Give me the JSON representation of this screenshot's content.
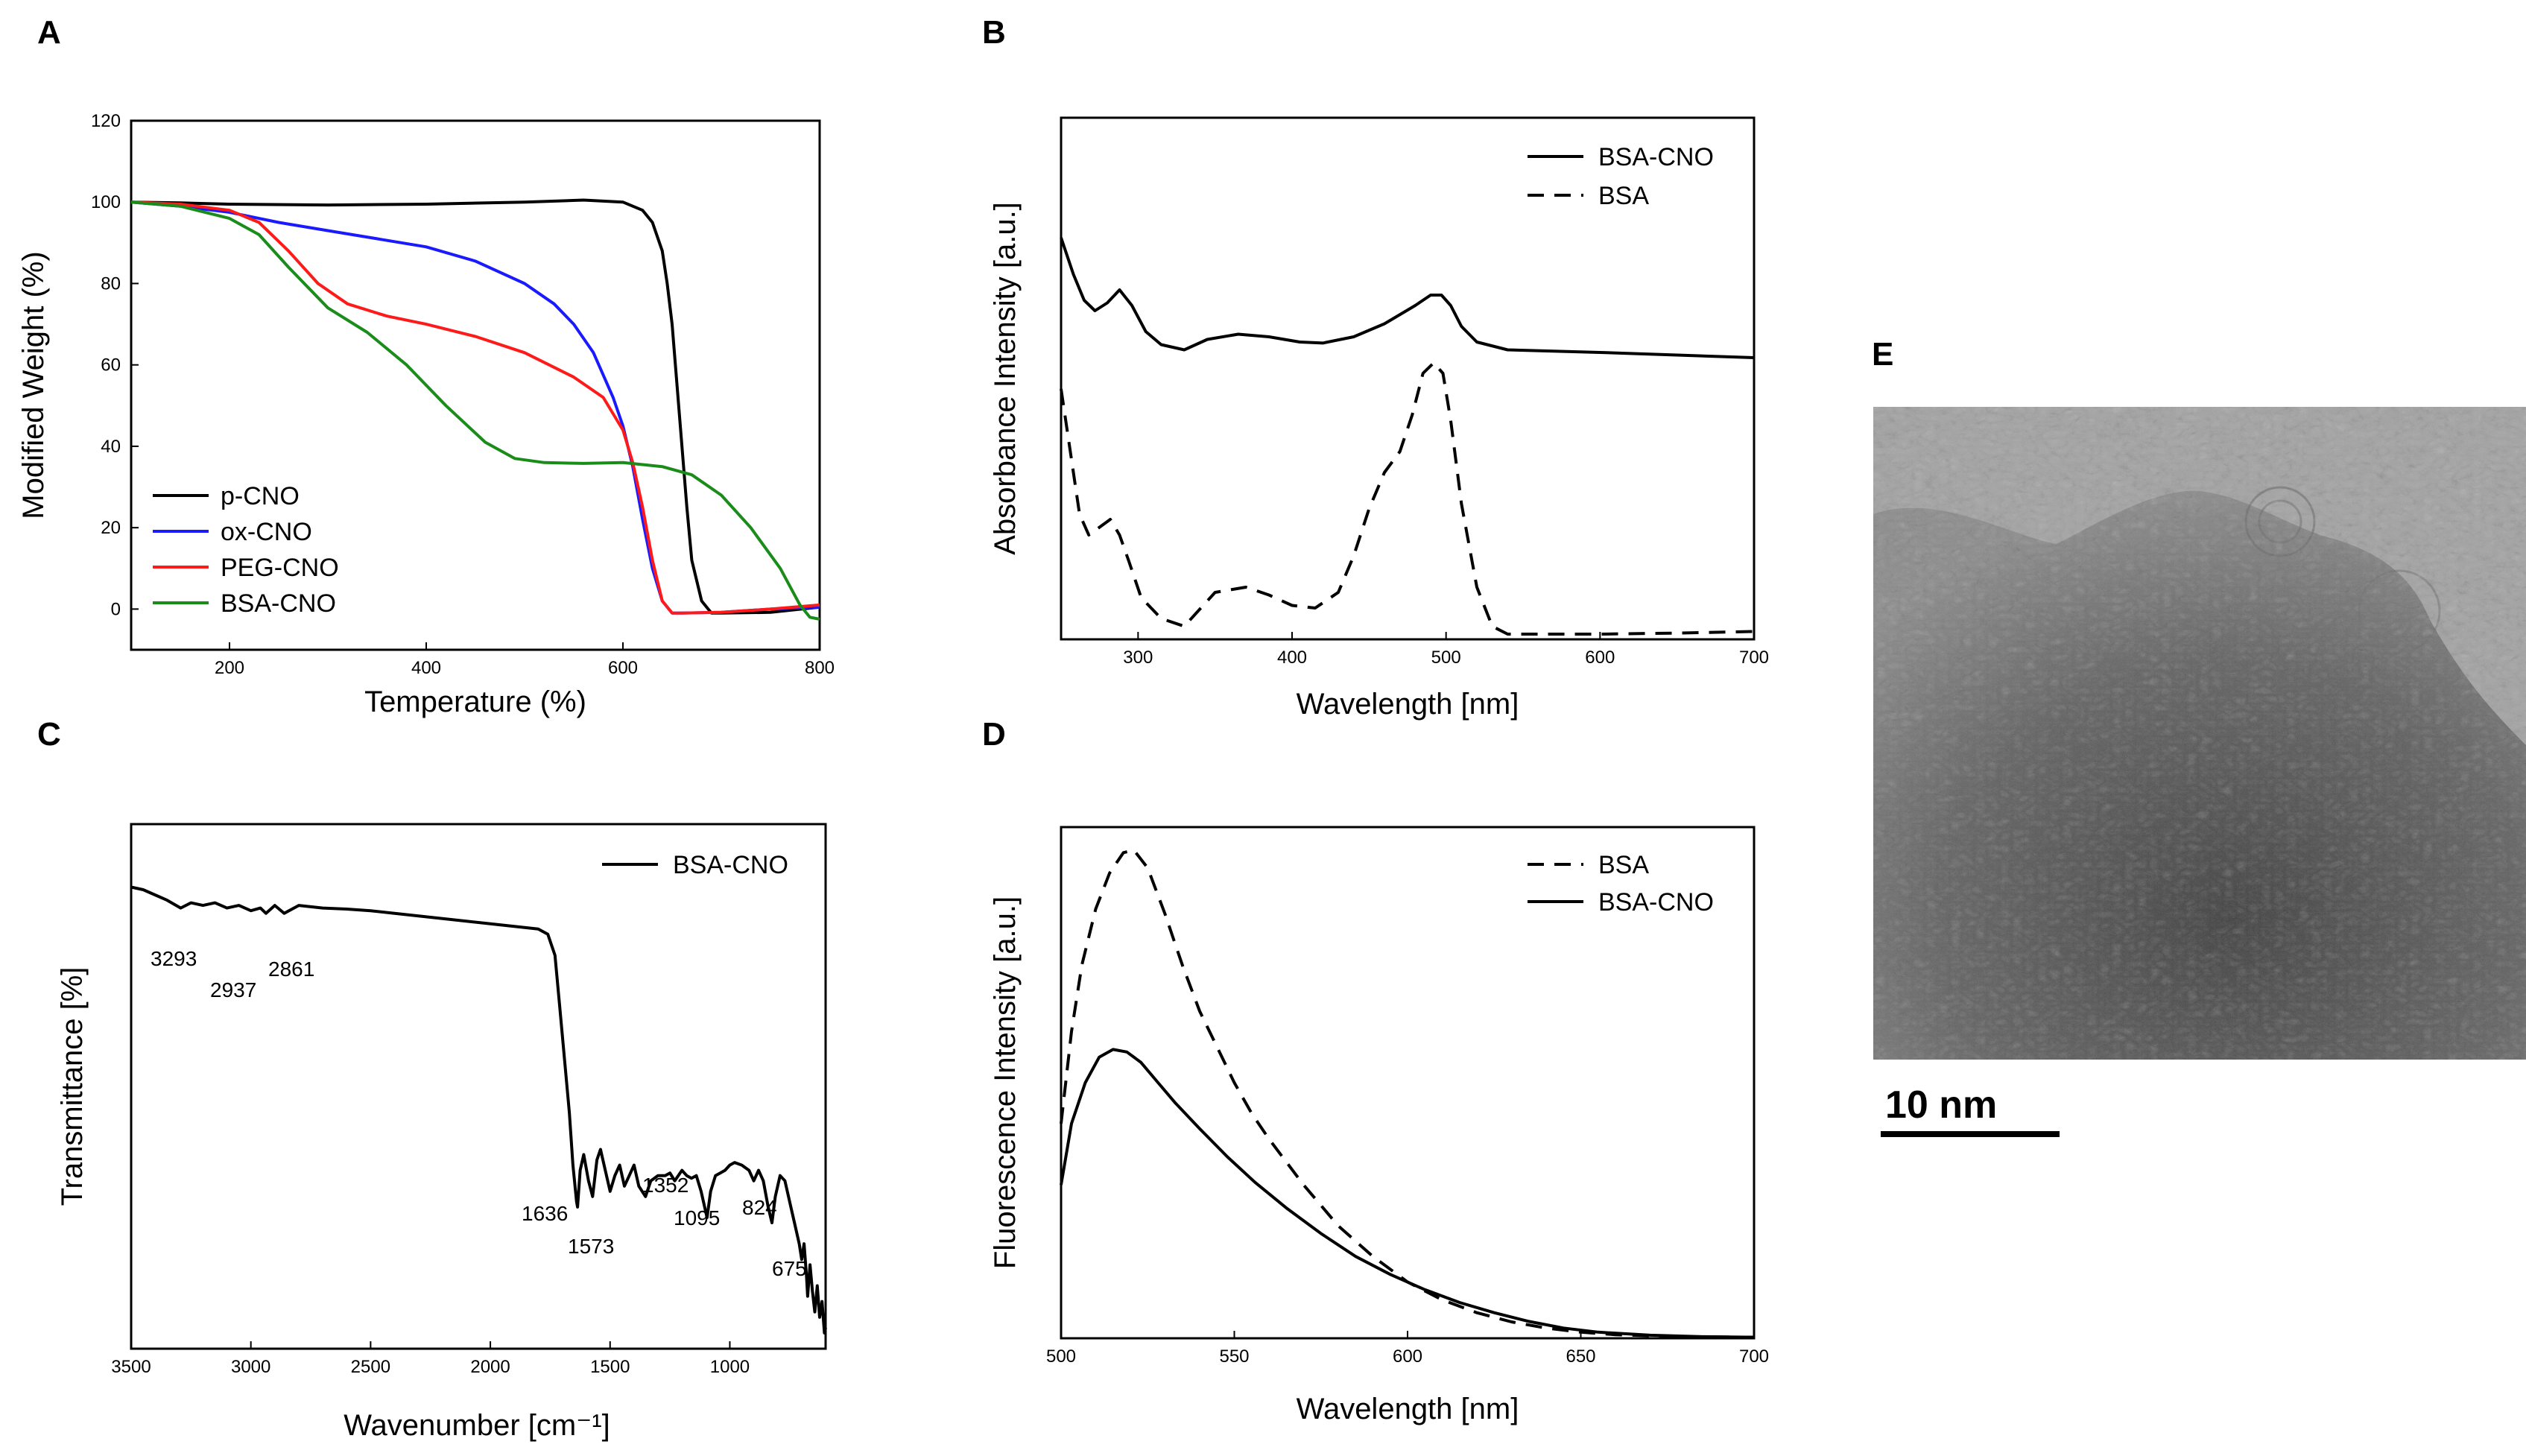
{
  "chart_data": [
    {
      "panel": "A",
      "type": "line",
      "xlabel": "Temperature (%)",
      "ylabel": "Modified Weight (%)",
      "xlim": [
        100,
        800
      ],
      "ylim": [
        -10,
        120
      ],
      "xticks": [
        200,
        400,
        600,
        800
      ],
      "yticks": [
        0,
        20,
        40,
        60,
        80,
        100,
        120
      ],
      "legend_position": "bottom-left",
      "series": [
        {
          "name": "p-CNO",
          "color": "#000000",
          "dash": "solid",
          "x": [
            100,
            150,
            200,
            300,
            400,
            500,
            560,
            600,
            620,
            630,
            640,
            645,
            650,
            655,
            660,
            665,
            670,
            680,
            690,
            700,
            750,
            800
          ],
          "y": [
            100,
            99.8,
            99.5,
            99.3,
            99.5,
            100,
            100.5,
            100,
            98,
            95,
            88,
            80,
            70,
            55,
            40,
            25,
            12,
            2,
            -1,
            -1,
            -0.8,
            0.5
          ]
        },
        {
          "name": "ox-CNO",
          "color": "#1a1aff",
          "dash": "solid",
          "x": [
            100,
            150,
            200,
            250,
            300,
            350,
            400,
            450,
            500,
            530,
            550,
            570,
            590,
            600,
            610,
            620,
            630,
            640,
            650,
            660,
            700,
            750,
            800
          ],
          "y": [
            100,
            99,
            97.5,
            95,
            93,
            91,
            89,
            85.5,
            80,
            75,
            70,
            63,
            52,
            45,
            35,
            22,
            10,
            2,
            -1,
            -1,
            -0.8,
            0,
            0.5
          ]
        },
        {
          "name": "PEG-CNO",
          "color": "#ff1a1a",
          "dash": "solid",
          "x": [
            100,
            150,
            200,
            230,
            260,
            290,
            320,
            360,
            400,
            450,
            500,
            550,
            580,
            600,
            610,
            620,
            630,
            640,
            650,
            660,
            700,
            750,
            800
          ],
          "y": [
            100,
            99.5,
            98,
            95,
            88,
            80,
            75,
            72,
            70,
            67,
            63,
            57,
            52,
            44,
            36,
            25,
            12,
            2,
            -1,
            -1,
            -0.8,
            0,
            1
          ]
        },
        {
          "name": "BSA-CNO",
          "color": "#1a8c1a",
          "dash": "solid",
          "x": [
            100,
            150,
            200,
            230,
            260,
            300,
            340,
            380,
            420,
            460,
            490,
            520,
            560,
            600,
            640,
            670,
            700,
            730,
            760,
            780,
            790,
            800
          ],
          "y": [
            100,
            99,
            96,
            92,
            84,
            74,
            68,
            60,
            50,
            41,
            37,
            36,
            35.8,
            36,
            35,
            33,
            28,
            20,
            10,
            1,
            -2,
            -2.5
          ]
        }
      ]
    },
    {
      "panel": "B",
      "type": "line",
      "xlabel": "Wavelength [nm]",
      "ylabel": "Absorbance Intensity [a.u.]",
      "xlim": [
        250,
        700
      ],
      "ylim": [
        0,
        10
      ],
      "xticks": [
        300,
        400,
        500,
        600,
        700
      ],
      "yticks": [],
      "legend_position": "top-right",
      "series": [
        {
          "name": "BSA-CNO",
          "color": "#000000",
          "dash": "solid",
          "x": [
            250,
            258,
            265,
            272,
            280,
            288,
            296,
            305,
            315,
            330,
            345,
            365,
            385,
            405,
            420,
            440,
            460,
            480,
            490,
            497,
            503,
            510,
            520,
            540,
            600,
            650,
            700
          ],
          "y": [
            7.7,
            7.0,
            6.5,
            6.3,
            6.45,
            6.7,
            6.4,
            5.9,
            5.65,
            5.55,
            5.75,
            5.85,
            5.8,
            5.7,
            5.68,
            5.8,
            6.05,
            6.4,
            6.6,
            6.6,
            6.4,
            6.0,
            5.7,
            5.55,
            5.5,
            5.45,
            5.4
          ]
        },
        {
          "name": "BSA",
          "color": "#000000",
          "dash": "dashed",
          "x": [
            250,
            256,
            262,
            268,
            275,
            282,
            288,
            294,
            302,
            315,
            330,
            350,
            370,
            385,
            400,
            415,
            430,
            440,
            450,
            460,
            470,
            478,
            485,
            492,
            498,
            503,
            510,
            520,
            530,
            540,
            600,
            650,
            700
          ],
          "y": [
            4.8,
            3.6,
            2.4,
            2.0,
            2.15,
            2.3,
            2.0,
            1.5,
            0.8,
            0.4,
            0.25,
            0.9,
            1.0,
            0.85,
            0.65,
            0.6,
            0.9,
            1.6,
            2.5,
            3.2,
            3.6,
            4.3,
            5.1,
            5.3,
            5.1,
            4.2,
            2.6,
            1.0,
            0.25,
            0.1,
            0.1,
            0.12,
            0.15
          ]
        }
      ]
    },
    {
      "panel": "C",
      "type": "line",
      "xlabel": "Wavenumber [cm⁻¹]",
      "ylabel": "Transmittance [%]",
      "xlim": [
        3500,
        600
      ],
      "ylim": [
        0,
        10
      ],
      "xticks": [
        3500,
        3000,
        2500,
        2000,
        1500,
        1000
      ],
      "yticks": [],
      "legend_position": "top-right",
      "annotations": [
        "3293",
        "2937",
        "2861",
        "1636",
        "1573",
        "1352",
        "1095",
        "824",
        "675"
      ],
      "series": [
        {
          "name": "BSA-CNO",
          "color": "#000000",
          "dash": "solid",
          "x": [
            3500,
            3450,
            3400,
            3350,
            3293,
            3250,
            3200,
            3150,
            3100,
            3050,
            3000,
            2960,
            2937,
            2900,
            2861,
            2820,
            2800,
            2700,
            2600,
            2500,
            2400,
            2300,
            2200,
            2100,
            2000,
            1900,
            1800,
            1760,
            1730,
            1710,
            1690,
            1670,
            1655,
            1640,
            1636,
            1625,
            1610,
            1590,
            1573,
            1555,
            1540,
            1520,
            1500,
            1480,
            1460,
            1440,
            1420,
            1400,
            1380,
            1352,
            1330,
            1300,
            1270,
            1250,
            1230,
            1200,
            1180,
            1160,
            1140,
            1120,
            1100,
            1095,
            1080,
            1060,
            1040,
            1020,
            1000,
            980,
            950,
            920,
            900,
            880,
            860,
            840,
            824,
            810,
            790,
            770,
            750,
            730,
            710,
            700,
            690,
            680,
            675,
            665,
            655,
            645,
            635,
            625,
            615,
            605,
            600
          ],
          "y": [
            8.8,
            8.75,
            8.65,
            8.55,
            8.4,
            8.5,
            8.45,
            8.5,
            8.4,
            8.45,
            8.35,
            8.4,
            8.3,
            8.45,
            8.3,
            8.4,
            8.45,
            8.4,
            8.38,
            8.35,
            8.3,
            8.25,
            8.2,
            8.15,
            8.1,
            8.05,
            8.0,
            7.9,
            7.5,
            6.5,
            5.5,
            4.5,
            3.5,
            2.8,
            2.7,
            3.4,
            3.7,
            3.2,
            2.9,
            3.6,
            3.8,
            3.4,
            3.0,
            3.3,
            3.5,
            3.1,
            3.3,
            3.5,
            3.1,
            2.9,
            3.2,
            3.3,
            3.3,
            3.35,
            3.2,
            3.4,
            3.3,
            3.25,
            3.3,
            3.0,
            2.6,
            2.5,
            3.0,
            3.3,
            3.35,
            3.4,
            3.5,
            3.55,
            3.5,
            3.4,
            3.2,
            3.4,
            3.2,
            2.7,
            2.4,
            2.9,
            3.3,
            3.2,
            2.8,
            2.4,
            2.0,
            1.7,
            2.0,
            1.4,
            1.0,
            1.6,
            1.1,
            0.7,
            1.2,
            0.6,
            0.9,
            0.3,
            0.4
          ]
        }
      ]
    },
    {
      "panel": "D",
      "type": "line",
      "xlabel": "Wavelength [nm]",
      "ylabel": "Fluorescence Intensity [a.u.]",
      "xlim": [
        500,
        700
      ],
      "ylim": [
        0,
        10
      ],
      "xticks": [
        500,
        550,
        600,
        650,
        700
      ],
      "yticks": [],
      "legend_position": "top-right",
      "series": [
        {
          "name": "BSA",
          "color": "#000000",
          "dash": "dashed",
          "x": [
            500,
            503,
            506,
            510,
            514,
            518,
            521,
            525,
            530,
            535,
            540,
            545,
            550,
            555,
            560,
            570,
            580,
            590,
            600,
            610,
            620,
            630,
            640,
            650,
            660,
            680,
            700
          ],
          "y": [
            4.2,
            6.0,
            7.3,
            8.4,
            9.1,
            9.5,
            9.55,
            9.2,
            8.3,
            7.3,
            6.4,
            5.7,
            5.0,
            4.4,
            3.9,
            3.0,
            2.2,
            1.6,
            1.1,
            0.75,
            0.5,
            0.32,
            0.2,
            0.12,
            0.07,
            0.03,
            0.02
          ]
        },
        {
          "name": "BSA-CNO",
          "color": "#000000",
          "dash": "solid",
          "x": [
            500,
            503,
            507,
            511,
            515,
            519,
            523,
            528,
            533,
            540,
            548,
            556,
            565,
            575,
            585,
            595,
            605,
            615,
            625,
            635,
            645,
            655,
            670,
            685,
            700
          ],
          "y": [
            3.0,
            4.2,
            5.0,
            5.5,
            5.65,
            5.6,
            5.4,
            5.0,
            4.6,
            4.1,
            3.55,
            3.05,
            2.55,
            2.05,
            1.6,
            1.25,
            0.95,
            0.7,
            0.5,
            0.33,
            0.2,
            0.12,
            0.06,
            0.03,
            0.02
          ]
        }
      ]
    }
  ],
  "panels": {
    "a": {
      "letter": "A"
    },
    "b": {
      "letter": "B"
    },
    "c": {
      "letter": "C"
    },
    "d": {
      "letter": "D"
    },
    "e": {
      "letter": "E",
      "scale_bar_label": "10 nm"
    }
  },
  "colors": {
    "axis": "#000000",
    "background": "#ffffff"
  }
}
